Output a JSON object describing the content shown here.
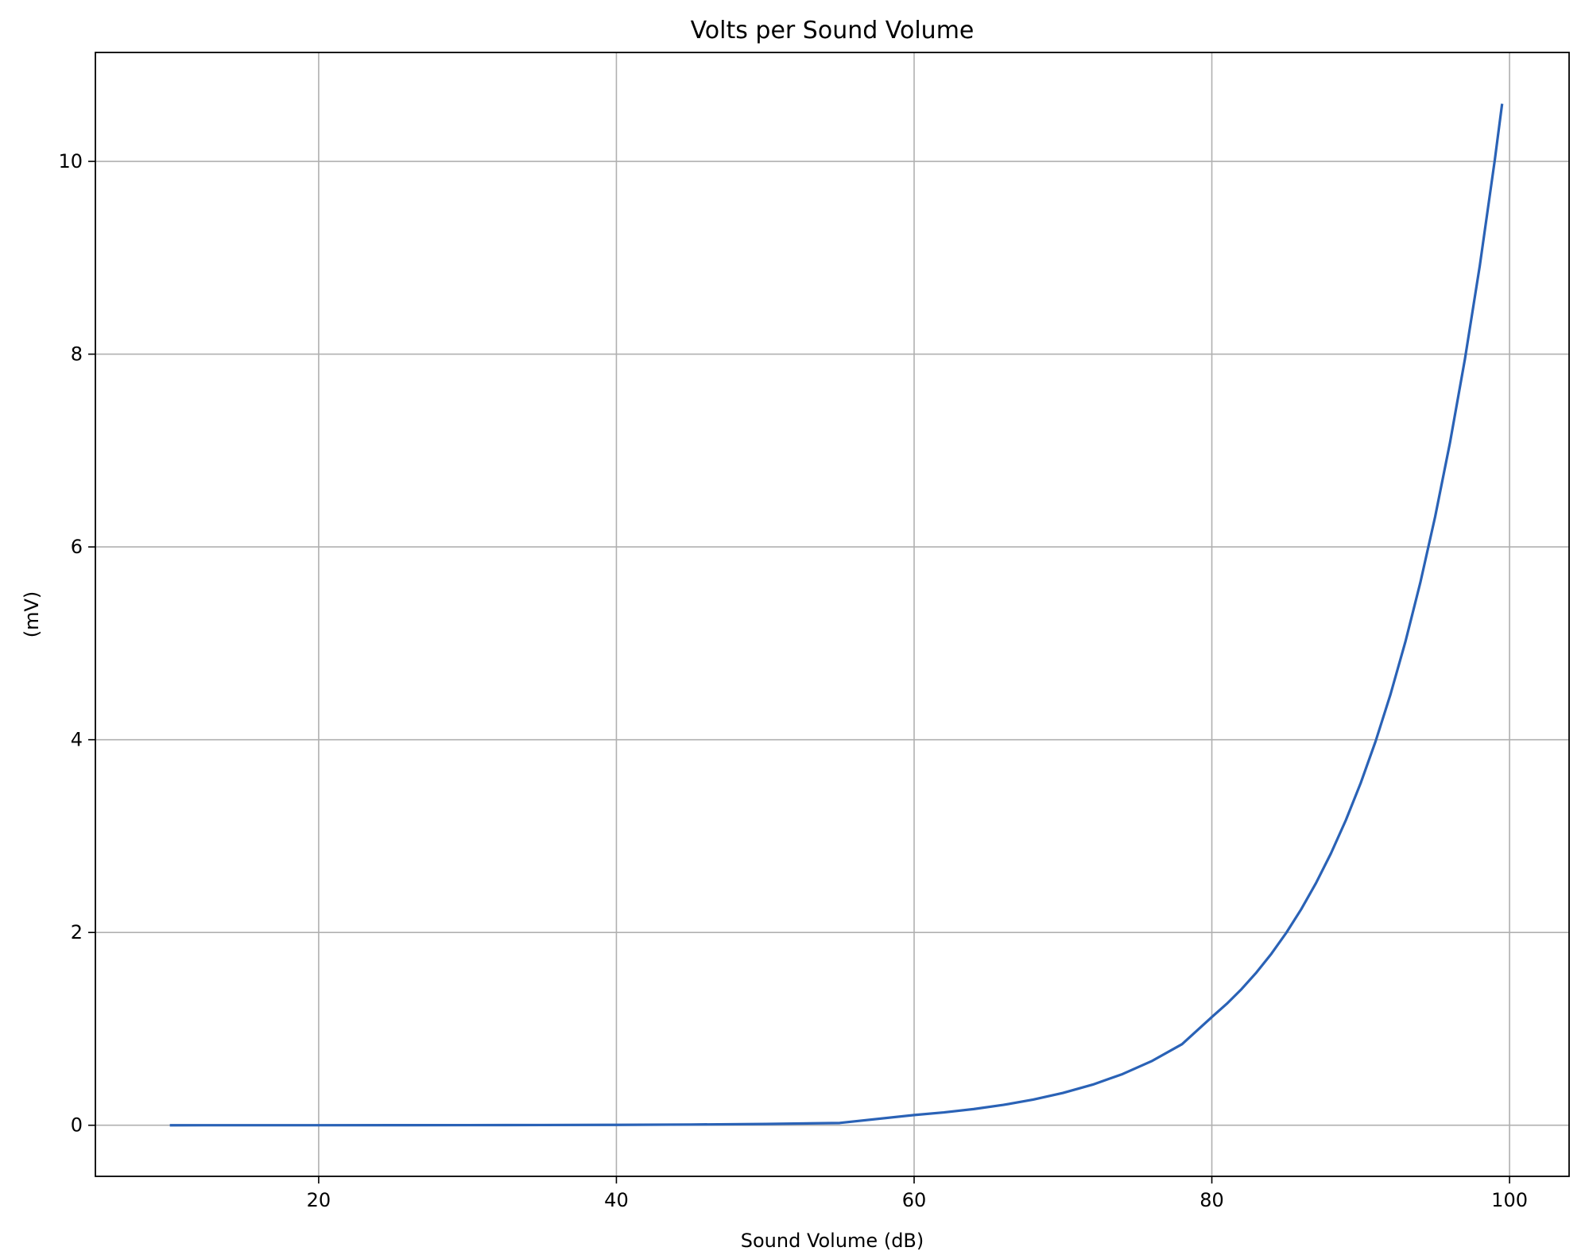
{
  "chart_data": {
    "type": "line",
    "title": "Volts per Sound Volume",
    "xlabel": "Sound Volume (dB)",
    "ylabel": "(mV)",
    "xlim": [
      5,
      104
    ],
    "ylim": [
      -0.53,
      11.13
    ],
    "xticks": [
      20,
      40,
      60,
      80,
      100
    ],
    "yticks": [
      0,
      2,
      4,
      6,
      8,
      10
    ],
    "grid": true,
    "series": [
      {
        "color": "#2a62b6",
        "x": [
          10,
          15,
          20,
          25,
          30,
          35,
          40,
          45,
          50,
          55,
          60,
          62,
          64,
          66,
          68,
          70,
          72,
          74,
          76,
          78,
          80,
          81,
          82,
          83,
          84,
          85,
          86,
          87,
          88,
          89,
          90,
          91,
          92,
          93,
          94,
          95,
          96,
          97,
          98,
          99,
          99.5
        ],
        "y": [
          0.0001,
          0.0002,
          0.0004,
          0.0007,
          0.0013,
          0.0024,
          0.0042,
          0.0075,
          0.0134,
          0.0238,
          0.1059,
          0.1333,
          0.1679,
          0.2113,
          0.2661,
          0.335,
          0.4217,
          0.531,
          0.6685,
          0.8416,
          1.1227,
          1.2597,
          1.4133,
          1.5858,
          1.7793,
          1.9964,
          2.24,
          2.5133,
          2.82,
          3.164,
          3.5501,
          3.9832,
          4.4692,
          5.0146,
          5.6264,
          6.3129,
          7.0832,
          7.9474,
          8.9171,
          10.005,
          10.598
        ]
      }
    ]
  }
}
